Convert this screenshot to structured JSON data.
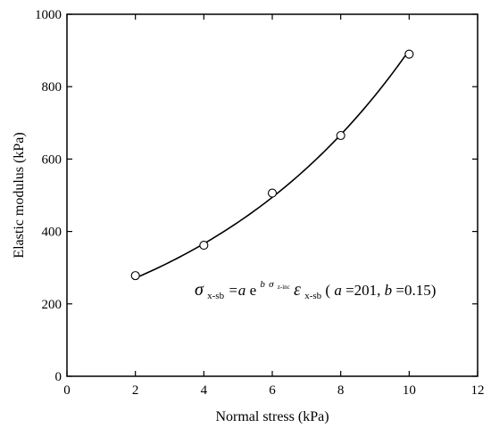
{
  "chart_data": {
    "type": "scatter",
    "xlabel": "Normal stress (kPa)",
    "ylabel": "Elastic modulus (kPa)",
    "xlim": [
      0,
      12
    ],
    "ylim": [
      0,
      1000
    ],
    "xticks": [
      0,
      2,
      4,
      6,
      8,
      10,
      12
    ],
    "yticks": [
      0,
      200,
      400,
      600,
      800,
      1000
    ],
    "grid": false,
    "series": [
      {
        "marker": "open-circle",
        "x": [
          2,
          4,
          6,
          8,
          10
        ],
        "y": [
          278,
          362,
          506,
          665,
          890
        ]
      }
    ],
    "fit": {
      "model": "a*exp(b*x)",
      "a": 201,
      "b": 0.15,
      "x_range": [
        2,
        10
      ]
    },
    "annotation": {
      "sigma": "σ",
      "sub1": "x-sb",
      "eq_a": "=a",
      "e": "e",
      "sup_b": "b",
      "sup_sigma": "σ",
      "sup_sub": "z-inc",
      "epsilon": "ε",
      "sub2": "x-sb",
      "open": " (",
      "a_name": "a",
      "a_eq": "=201, ",
      "b_name": "b",
      "b_eq": "=0.15)"
    }
  }
}
